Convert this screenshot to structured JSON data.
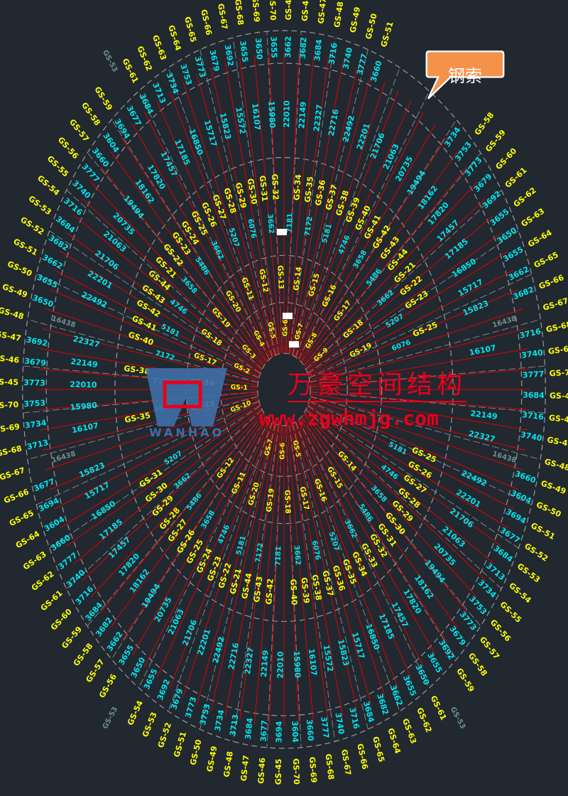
{
  "colors": {
    "background": "#212830",
    "cable": "#e00000",
    "grid": "#9a9a9a",
    "label_id": "#ffff00",
    "label_len": "#00e5ee",
    "label_gray": "#6f8f8f",
    "callout": "#f5924a",
    "watermark": "#e8001c",
    "logo": "#3d6fa8"
  },
  "callout": {
    "text": "钢索"
  },
  "watermark": {
    "name": "万豪空间结构",
    "url": "www.zgwhmjg.com",
    "logo_text": "WANHAO"
  },
  "rings": {
    "outer_ids": [
      "GS-45",
      "GS-46",
      "GS-47",
      "GS-48",
      "GS-49",
      "GS-50",
      "GS-51",
      "GS-52",
      "GS-53",
      "GS-54",
      "GS-55",
      "GS-56",
      "GS-57",
      "GS-58",
      "GS-59",
      "GS-60",
      "GS-61",
      "GS-62",
      "GS-63",
      "GS-64",
      "GS-65",
      "GS-66",
      "GS-67",
      "GS-68",
      "GS-69",
      "GS-70"
    ],
    "outer_lengths": [
      "3684",
      "3716",
      "3740",
      "3777",
      "3660",
      "3604",
      "3694",
      "3677",
      "3684",
      "3713",
      "3734",
      "3753",
      "3773",
      "3679",
      "3692",
      "3655",
      "3650",
      "3655",
      "3662",
      "3682"
    ],
    "mid_lengths": [
      "22010",
      "22149",
      "22327",
      "22716",
      "22492",
      "22201",
      "21706",
      "21063",
      "20735",
      "19494",
      "18162",
      "17820",
      "17457",
      "17185",
      "16850",
      "15717",
      "15823",
      "15572",
      "16107",
      "15980"
    ],
    "mid_ids": [
      "GS-21",
      "GS-22",
      "GS-23",
      "GS-24",
      "GS-25",
      "GS-26",
      "GS-27",
      "GS-28",
      "GS-29",
      "GS-30",
      "GS-31",
      "GS-32",
      "GS-33",
      "GS-34",
      "GS-35",
      "GS-36",
      "GS-37",
      "GS-38",
      "GS-39",
      "GS-40",
      "GS-41",
      "GS-42",
      "GS-43",
      "GS-44"
    ],
    "inner_lengths": [
      "7181",
      "7172",
      "5181",
      "4746",
      "3658",
      "5486",
      "3662",
      "5207",
      "6076",
      "3662"
    ],
    "inner_ids": [
      "GS-11",
      "GS-12",
      "GS-13",
      "GS-14",
      "GS-15",
      "GS-16",
      "GS-17",
      "GS-18",
      "GS-19",
      "GS-20"
    ],
    "center_ids": [
      "GS-1",
      "GS-2",
      "GS-3",
      "GS-4",
      "GS-5",
      "GS-6",
      "GS-7",
      "GS-8",
      "GS-9",
      "GS-10"
    ],
    "gray_labels": [
      "16438",
      "GS-53"
    ]
  }
}
